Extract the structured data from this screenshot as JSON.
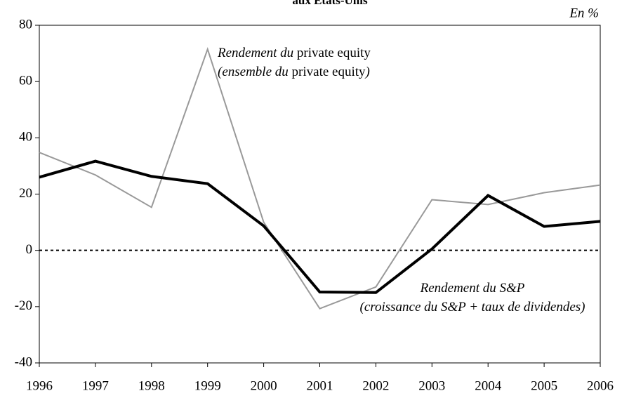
{
  "chart_data": {
    "type": "line",
    "title": "aux Etats-Unis",
    "unit_label": "En %",
    "x": [
      1996,
      1997,
      1998,
      1999,
      2000,
      2001,
      2002,
      2003,
      2004,
      2005,
      2006
    ],
    "xlim": [
      1996,
      2006
    ],
    "xticks": [
      1996,
      1997,
      1998,
      1999,
      2000,
      2001,
      2002,
      2003,
      2004,
      2005,
      2006
    ],
    "ylim": [
      -40,
      80
    ],
    "yticks": [
      -40,
      -20,
      0,
      20,
      40,
      60,
      80
    ],
    "hline": 0,
    "series": [
      {
        "name": "Rendement du S&P",
        "color": "#000000",
        "width": 4,
        "values": [
          26,
          31.7,
          26.3,
          23.7,
          8.7,
          -14.8,
          -15,
          0.5,
          19.5,
          8.5,
          10.3
        ]
      },
      {
        "name": "Rendement du private equity",
        "color": "#999999",
        "width": 2,
        "values": [
          34.8,
          26.8,
          15.3,
          71.5,
          10,
          -20.7,
          -13,
          18,
          16.3,
          20.5,
          23.2
        ]
      }
    ],
    "annotations": [
      {
        "lines": [
          [
            "Rendement du",
            "private equity"
          ],
          [
            "(ensemble du",
            "private equity",
            ")"
          ]
        ]
      },
      {
        "lines": [
          [
            "Rendement du S&P"
          ],
          [
            "(croissance du S&P + taux de dividendes)"
          ]
        ]
      }
    ]
  }
}
